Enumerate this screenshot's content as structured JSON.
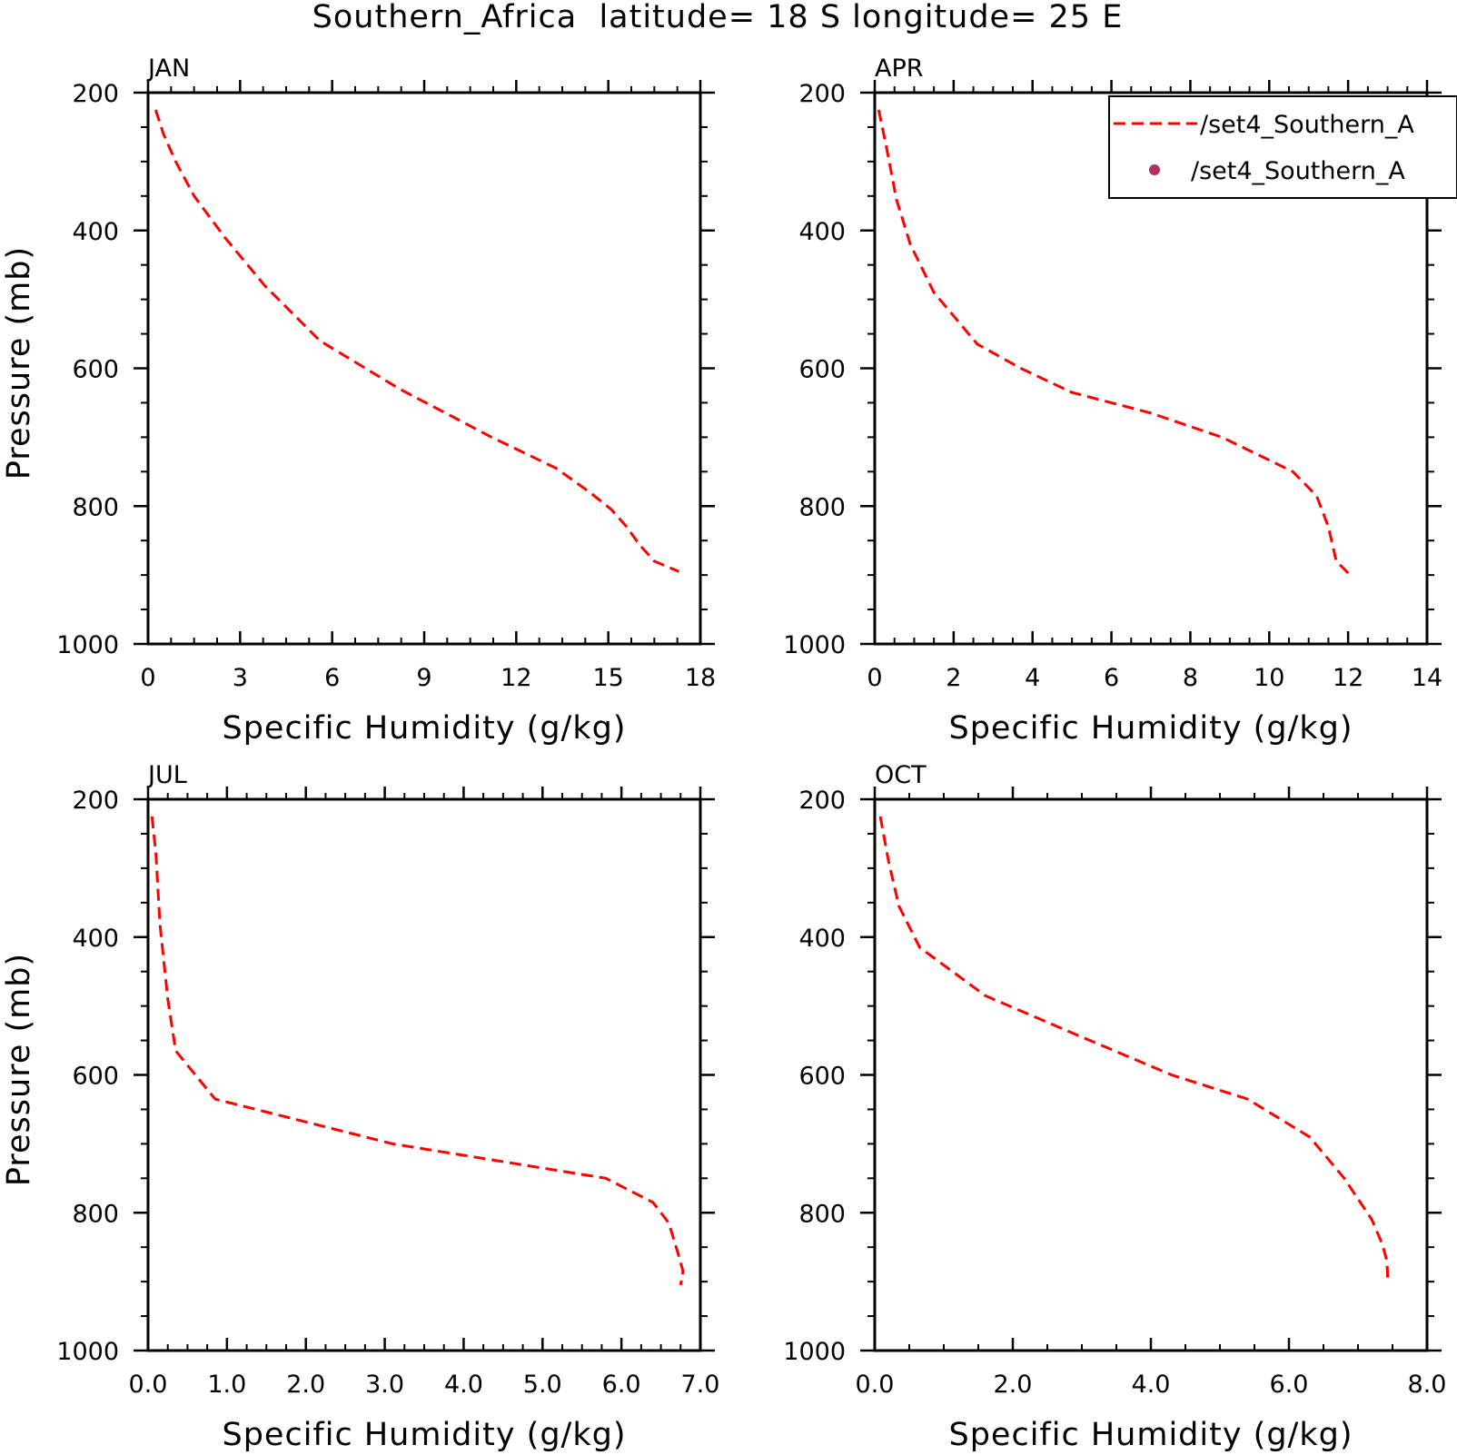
{
  "figure": {
    "title": "Southern_Africa  latitude= 18 S longitude= 25 E"
  },
  "legend": {
    "items": [
      {
        "label": "/set4_Southern_A",
        "style": "dashed-line",
        "color": "#ff0000"
      },
      {
        "label": "/set4_Southern_A",
        "style": "marker",
        "color": "#b03060"
      }
    ]
  },
  "colors": {
    "line": "#ff0000",
    "marker": "#b03060",
    "axis": "#000000"
  },
  "chart_data": [
    {
      "type": "line",
      "title": "JAN",
      "xlabel": "Specific Humidity (g/kg)",
      "ylabel": "Pressure (mb)",
      "xlim": [
        0,
        18
      ],
      "ylim": [
        200,
        1000
      ],
      "y_inverted": true,
      "xticks": [
        0,
        3,
        6,
        9,
        12,
        15,
        18
      ],
      "xtick_labels": [
        "0",
        "3",
        "6",
        "9",
        "12",
        "15",
        "18"
      ],
      "yticks": [
        200,
        400,
        600,
        800,
        1000
      ],
      "ytick_labels": [
        "200",
        "400",
        "600",
        "800",
        "1000"
      ],
      "series": [
        {
          "style": "dashed",
          "color": "#ff0000",
          "x": [
            0.25,
            0.5,
            0.9,
            1.5,
            2.5,
            3.8,
            5.6,
            8.2,
            11.2,
            13.3,
            14.4,
            15.1,
            15.6,
            16.0,
            16.5,
            17.3
          ],
          "y": [
            225,
            260,
            300,
            350,
            410,
            480,
            560,
            630,
            700,
            745,
            780,
            805,
            830,
            855,
            880,
            895
          ]
        }
      ]
    },
    {
      "type": "line",
      "title": "APR",
      "xlabel": "Specific Humidity (g/kg)",
      "ylabel": "",
      "xlim": [
        0,
        14
      ],
      "ylim": [
        200,
        1000
      ],
      "y_inverted": true,
      "xticks": [
        0,
        2,
        4,
        6,
        8,
        10,
        12,
        14
      ],
      "xtick_labels": [
        "0",
        "2",
        "4",
        "6",
        "8",
        "10",
        "12",
        "14"
      ],
      "yticks": [
        200,
        400,
        600,
        800,
        1000
      ],
      "ytick_labels": [
        "200",
        "400",
        "600",
        "800",
        "1000"
      ],
      "series": [
        {
          "style": "dashed",
          "color": "#ff0000",
          "x": [
            0.1,
            0.3,
            0.55,
            0.9,
            1.5,
            2.6,
            3.7,
            5.0,
            7.0,
            8.8,
            10.6,
            11.2,
            11.5,
            11.7,
            12.05
          ],
          "y": [
            225,
            280,
            355,
            420,
            490,
            565,
            600,
            635,
            665,
            700,
            750,
            785,
            830,
            880,
            900
          ]
        }
      ]
    },
    {
      "type": "line",
      "title": "JUL",
      "xlabel": "Specific Humidity (g/kg)",
      "ylabel": "Pressure (mb)",
      "xlim": [
        0,
        7
      ],
      "ylim": [
        200,
        1000
      ],
      "y_inverted": true,
      "xticks": [
        0,
        1,
        2,
        3,
        4,
        5,
        6,
        7
      ],
      "xtick_labels": [
        "0.0",
        "1.0",
        "2.0",
        "3.0",
        "4.0",
        "5.0",
        "6.0",
        "7.0"
      ],
      "yticks": [
        200,
        400,
        600,
        800,
        1000
      ],
      "ytick_labels": [
        "200",
        "400",
        "600",
        "800",
        "1000"
      ],
      "series": [
        {
          "style": "dashed",
          "color": "#ff0000",
          "x": [
            0.05,
            0.1,
            0.15,
            0.25,
            0.35,
            0.85,
            3.1,
            5.8,
            6.4,
            6.6,
            6.72,
            6.78,
            6.75
          ],
          "y": [
            225,
            280,
            380,
            490,
            565,
            635,
            700,
            750,
            785,
            815,
            860,
            885,
            905
          ]
        }
      ]
    },
    {
      "type": "line",
      "title": "OCT",
      "xlabel": "Specific Humidity (g/kg)",
      "ylabel": "",
      "xlim": [
        0,
        8
      ],
      "ylim": [
        200,
        1000
      ],
      "y_inverted": true,
      "xticks": [
        0,
        2,
        4,
        6,
        8
      ],
      "xtick_labels": [
        "0.0",
        "2.0",
        "4.0",
        "6.0",
        "8.0"
      ],
      "yticks": [
        200,
        400,
        600,
        800,
        1000
      ],
      "ytick_labels": [
        "200",
        "400",
        "600",
        "800",
        "1000"
      ],
      "series": [
        {
          "style": "dashed",
          "color": "#ff0000",
          "x": [
            0.08,
            0.2,
            0.35,
            0.65,
            1.6,
            3.0,
            4.3,
            5.4,
            6.3,
            6.8,
            7.2,
            7.35,
            7.42,
            7.43
          ],
          "y": [
            225,
            290,
            355,
            415,
            485,
            545,
            600,
            635,
            690,
            750,
            810,
            845,
            870,
            895
          ]
        }
      ]
    }
  ]
}
